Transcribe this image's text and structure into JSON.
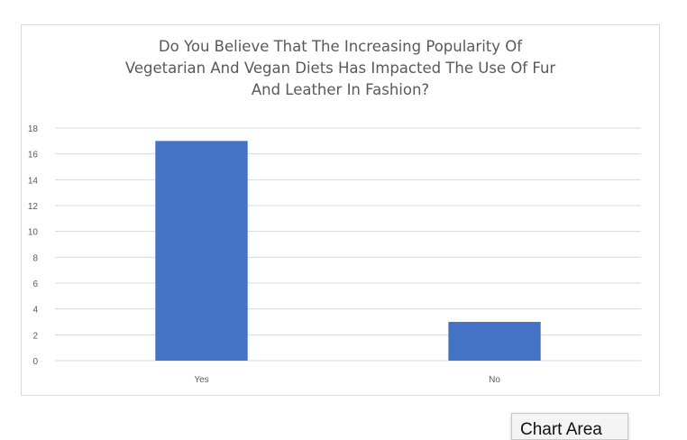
{
  "chart_data": {
    "type": "bar",
    "title_lines": [
      "Do You Believe That The Increasing Popularity Of",
      "Vegetarian And Vegan Diets Has Impacted The Use Of Fur",
      "And Leather In Fashion?"
    ],
    "categories": [
      "Yes",
      "No"
    ],
    "values": [
      17,
      3
    ],
    "ylim": [
      0,
      18
    ],
    "yticks": [
      0,
      2,
      4,
      6,
      8,
      10,
      12,
      14,
      16,
      18
    ],
    "xlabel": "",
    "ylabel": "",
    "grid": true,
    "bar_color": "#4472c4"
  },
  "tooltip": "Chart Area"
}
